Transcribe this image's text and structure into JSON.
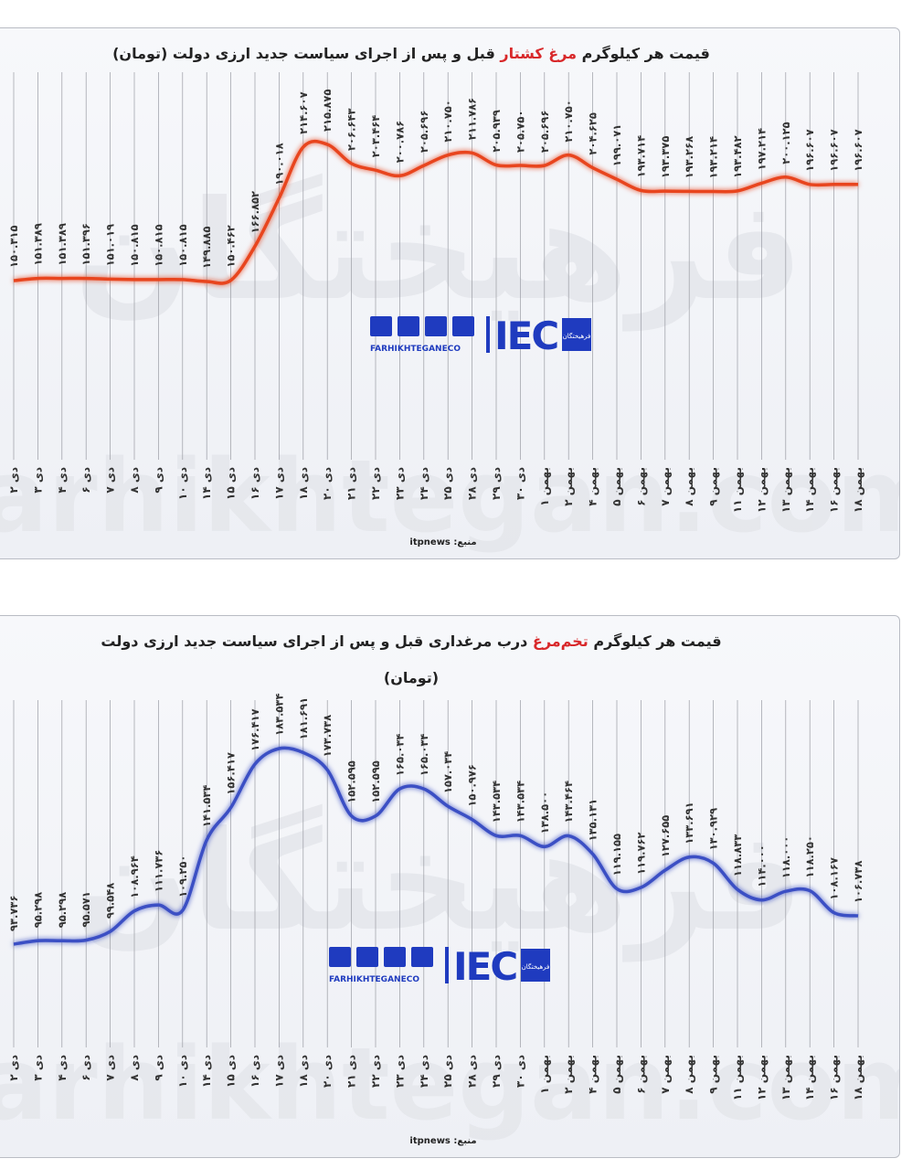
{
  "chart_data": [
    {
      "type": "line",
      "title": [
        "قیمت هر کیلوگرم ",
        "مرغ کشتار",
        " قبل و پس از اجرای سیاست جدید ارزی دولت (تومان)"
      ],
      "source": "منبع: itpnews",
      "logo": {
        "text": "FARHIKHTEGANECO",
        "mark": "IEC",
        "badge": "فرهیختگان"
      },
      "watermark": [
        "فرهیختگان",
        "farhikhtegan.com"
      ],
      "color": "#e8451e",
      "categories": [
        "۲ دی",
        "۳ دی",
        "۴ دی",
        "۶ دی",
        "۷ دی",
        "۸ دی",
        "۹ دی",
        "۱۰ دی",
        "۱۴ دی",
        "۱۵ دی",
        "۱۶ دی",
        "۱۷ دی",
        "۱۸ دی",
        "۲۰ دی",
        "۲۱ دی",
        "۲۲ دی",
        "۲۳ دی",
        "۲۴ دی",
        "۲۵ دی",
        "۲۸ دی",
        "۲۹ دی",
        "۳۰ دی",
        "۱ بهمن",
        "۲ بهمن",
        "۴ بهمن",
        "۵ بهمن",
        "۶ بهمن",
        "۷ بهمن",
        "۸ بهمن",
        "۹ بهمن",
        "۱۱ بهمن",
        "۱۲ بهمن",
        "۱۳ بهمن",
        "۱۴ بهمن",
        "۱۶ بهمن",
        "۱۸ بهمن"
      ],
      "values": [
        150315,
        151389,
        151389,
        151396,
        151019,
        150815,
        150815,
        150815,
        149885,
        150462,
        166852,
        190018,
        214607,
        215875,
        206643,
        203464,
        200786,
        205696,
        210750,
        211786,
        205939,
        205750,
        205696,
        210750,
        204625,
        199071,
        193714,
        193375,
        193268,
        193214,
        193482,
        197214,
        200125,
        196607,
        196607,
        196607
      ],
      "value_labels": [
        "۱۵۰.۳۱۵",
        "۱۵۱.۳۸۹",
        "۱۵۱.۳۸۹",
        "۱۵۱.۳۹۶",
        "۱۵۱.۰۱۹",
        "۱۵۰.۸۱۵",
        "۱۵۰.۸۱۵",
        "۱۵۰.۸۱۵",
        "۱۴۹.۸۸۵",
        "۱۵۰.۴۶۲",
        "۱۶۶.۸۵۲",
        "۱۹۰.۰۱۸",
        "۲۱۴.۶۰۷",
        "۲۱۵.۸۷۵",
        "۲۰۶.۶۴۳",
        "۲۰۳.۴۶۴",
        "۲۰۰.۷۸۶",
        "۲۰۵.۶۹۶",
        "۲۱۰.۷۵۰",
        "۲۱۱.۷۸۶",
        "۲۰۵.۹۳۹",
        "۲۰۵.۷۵۰",
        "۲۰۵.۶۹۶",
        "۲۱۰.۷۵۰",
        "۲۰۴.۶۲۵",
        "۱۹۹.۰۷۱",
        "۱۹۳.۷۱۴",
        "۱۹۳.۳۷۵",
        "۱۹۳.۲۶۸",
        "۱۹۳.۲۱۴",
        "۱۹۳.۴۸۲",
        "۱۹۷.۲۱۴",
        "۲۰۰.۱۲۵",
        "۱۹۶.۶۰۷",
        "۱۹۶.۶۰۷",
        "۱۹۶.۶۰۷"
      ]
    },
    {
      "type": "line",
      "title": [
        "قیمت هر کیلوگرم ",
        "تخم‌مرغ",
        " درب مرغداری قبل و پس از اجرای سیاست جدید ارزی دولت"
      ],
      "subtitle": "(تومان)",
      "source": "منبع: itpnews",
      "logo": {
        "text": "FARHIKHTEGANECO",
        "mark": "IEC",
        "badge": "فرهیختگان"
      },
      "watermark": [
        "فرهیختگان",
        "farhikhtegan.com"
      ],
      "color": "#3b4fc4",
      "categories": [
        "۲ دی",
        "۳ دی",
        "۴ دی",
        "۶ دی",
        "۷ دی",
        "۸ دی",
        "۹ دی",
        "۱۰ دی",
        "۱۴ دی",
        "۱۵ دی",
        "۱۶ دی",
        "۱۷ دی",
        "۱۸ دی",
        "۲۰ دی",
        "۲۱ دی",
        "۲۲ دی",
        "۲۳ دی",
        "۲۴ دی",
        "۲۵ دی",
        "۲۸ دی",
        "۲۹ دی",
        "۳۰ دی",
        "۱ بهمن",
        "۲ بهمن",
        "۴ بهمن",
        "۵ بهمن",
        "۶ بهمن",
        "۷ بهمن",
        "۸ بهمن",
        "۹ بهمن",
        "۱۱ بهمن",
        "۱۲ بهمن",
        "۱۳ بهمن",
        "۱۴ بهمن",
        "۱۶ بهمن",
        "۱۸ بهمن"
      ],
      "values": [
        93736,
        95298,
        95298,
        95571,
        99548,
        108964,
        111736,
        109250,
        141534,
        156417,
        176417,
        183534,
        181691,
        173738,
        152595,
        152595,
        165034,
        165034,
        157034,
        150976,
        143534,
        143534,
        138500,
        143464,
        135131,
        119155,
        119762,
        127655,
        133691,
        130929,
        118833,
        114000,
        118000,
        118250,
        108167,
        106738
      ],
      "value_labels": [
        "۹۳.۷۳۶",
        "۹۵.۲۹۸",
        "۹۵.۲۹۸",
        "۹۵.۵۷۱",
        "۹۹.۵۴۸",
        "۱۰۸.۹۶۴",
        "۱۱۱.۷۳۶",
        "۱۰۹.۲۵۰",
        "۱۴۱.۵۳۴",
        "۱۵۶.۴۱۷",
        "۱۷۶.۴۱۷",
        "۱۸۳.۵۳۴",
        "۱۸۱.۶۹۱",
        "۱۷۳.۷۳۸",
        "۱۵۲.۵۹۵",
        "۱۵۲.۵۹۵",
        "۱۶۵.۰۳۴",
        "۱۶۵.۰۳۴",
        "۱۵۷.۰۳۴",
        "۱۵۰.۹۷۶",
        "۱۴۳.۵۳۴",
        "۱۴۳.۵۳۴",
        "۱۳۸.۵۰۰",
        "۱۴۳.۴۶۴",
        "۱۳۵.۱۳۱",
        "۱۱۹.۱۵۵",
        "۱۱۹.۷۶۲",
        "۱۲۷.۶۵۵",
        "۱۳۳.۶۹۱",
        "۱۳۰.۹۲۹",
        "۱۱۸.۸۳۳",
        "۱۱۴.۰۰۰",
        "۱۱۸.۰۰۰",
        "۱۱۸.۲۵۰",
        "۱۰۸.۱۶۷",
        "۱۰۶.۷۳۸"
      ]
    }
  ]
}
